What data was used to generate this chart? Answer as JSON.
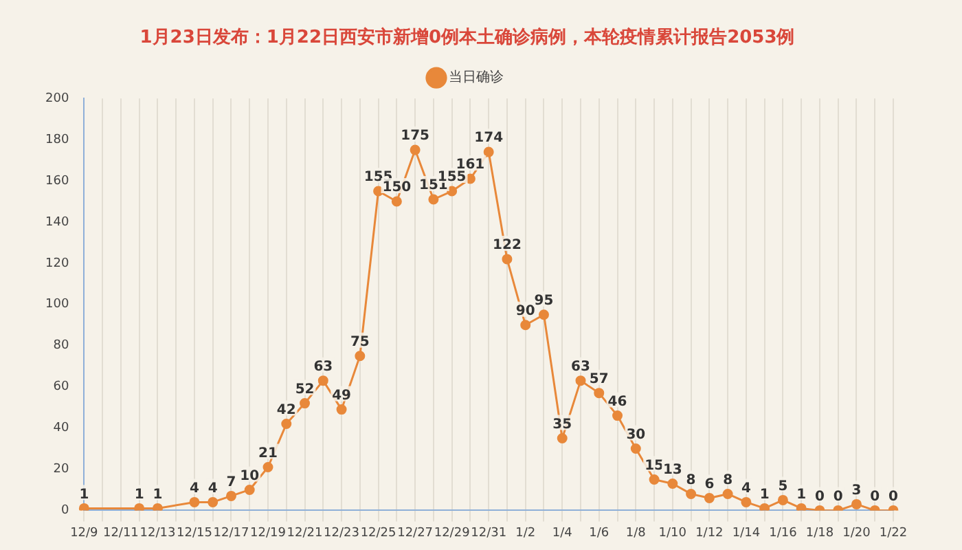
{
  "chart_data": {
    "type": "line",
    "title": "1月23日发布：1月22日西安市新增0例本土确诊病例，本轮疫情累计报告2053例",
    "categories": [
      "12/9",
      null,
      "12/11",
      null,
      "12/13",
      null,
      "12/15",
      null,
      "12/17",
      null,
      "12/19",
      null,
      "12/21",
      null,
      "12/23",
      null,
      "12/25",
      null,
      "12/27",
      null,
      "12/29",
      null,
      "12/31",
      null,
      "1/2",
      null,
      "1/4",
      null,
      "1/6",
      null,
      "1/8",
      null,
      "1/10",
      null,
      "1/12",
      null,
      "1/14",
      null,
      "1/16",
      null,
      "1/18",
      null,
      "1/20",
      null,
      "1/22"
    ],
    "series": [
      {
        "name": "当日确诊",
        "color": "#e8883a",
        "values": [
          1,
          null,
          null,
          1,
          1,
          null,
          4,
          4,
          7,
          10,
          21,
          42,
          52,
          63,
          49,
          75,
          155,
          150,
          175,
          151,
          155,
          161,
          174,
          122,
          90,
          95,
          35,
          63,
          57,
          46,
          30,
          15,
          13,
          8,
          6,
          8,
          4,
          1,
          5,
          1,
          0,
          0,
          3,
          0,
          0
        ]
      }
    ],
    "ylim": [
      0,
      200
    ],
    "yticks": [
      0,
      20,
      40,
      60,
      80,
      100,
      120,
      140,
      160,
      180,
      200
    ],
    "grid": "x",
    "legend": "top",
    "marker": "circle",
    "line_style": "solid",
    "data_labels": true
  }
}
